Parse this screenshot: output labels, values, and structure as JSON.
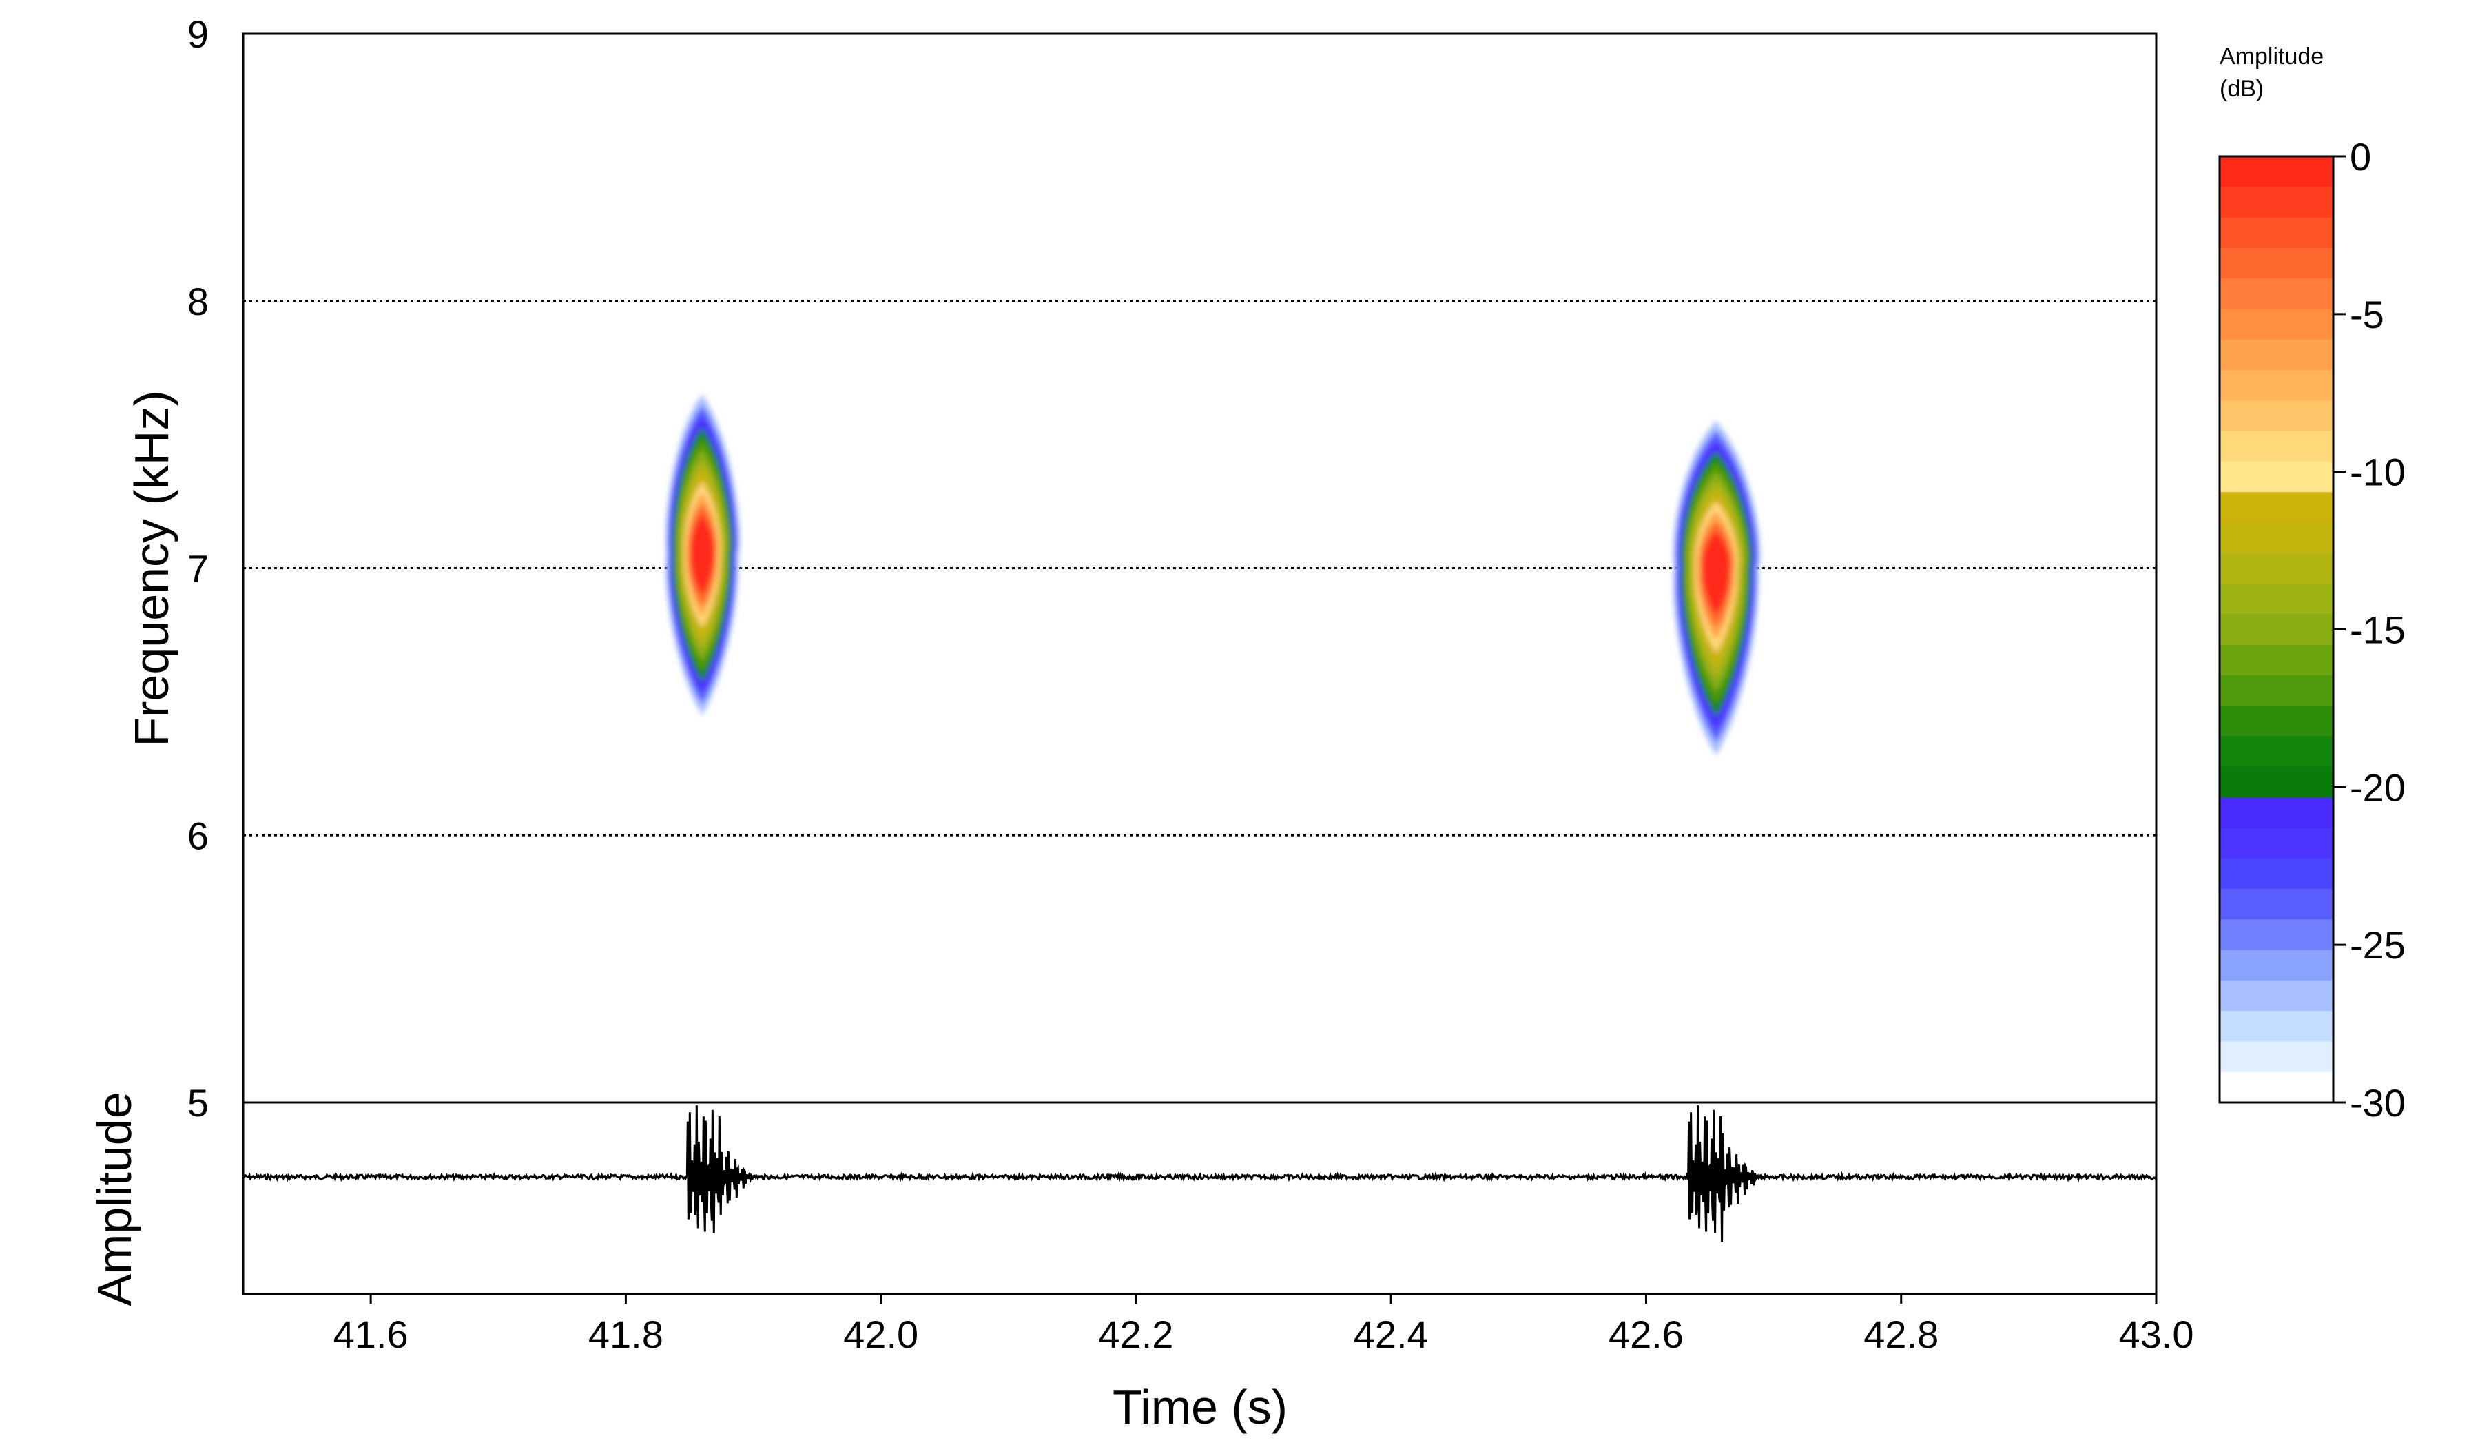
{
  "chart_data": [
    {
      "type": "heatmap",
      "panel": "spectrogram",
      "ylabel": "Frequency (kHz)",
      "xlim": [
        41.5,
        43.0
      ],
      "ylim": [
        5,
        9
      ],
      "yticks": [
        "5",
        "6",
        "7",
        "8",
        "9"
      ],
      "grid": "horizontal dotted lines at 6, 7, 8 kHz",
      "events": [
        {
          "t_start": 41.85,
          "t_end": 41.9,
          "t_peak": 41.86,
          "f_low": 6.45,
          "f_high": 7.65,
          "f_peak": 7.05,
          "peak_db": 0
        },
        {
          "t_start": 42.63,
          "t_end": 42.69,
          "t_peak": 42.655,
          "f_low": 6.3,
          "f_high": 7.55,
          "f_peak": 7.0,
          "peak_db": 0
        }
      ]
    },
    {
      "type": "line",
      "panel": "oscillogram",
      "ylabel": "Amplitude",
      "xlabel": "Time (s)",
      "xlim": [
        41.5,
        43.0
      ],
      "xticks": [
        "41.6",
        "41.8",
        "42.0",
        "42.2",
        "42.4",
        "42.6",
        "42.8",
        "43.0"
      ],
      "bursts": [
        {
          "t_start": 41.848,
          "t_end": 41.895,
          "relative_amplitude": 1.0
        },
        {
          "t_start": 42.633,
          "t_end": 42.685,
          "relative_amplitude": 1.0
        }
      ]
    }
  ],
  "colorbar": {
    "title_line1": "Amplitude",
    "title_line2": "(dB)",
    "range": [
      -30,
      0
    ],
    "ticks": [
      "0",
      "-5",
      "-10",
      "-15",
      "-20",
      "-25",
      "-30"
    ],
    "colors": [
      "#ff2a1a",
      "#ff3f1f",
      "#ff5526",
      "#ff692e",
      "#ff7d38",
      "#ff9042",
      "#ffa34e",
      "#ffb55b",
      "#ffc76a",
      "#ffd87a",
      "#ffe68c",
      "#cdb30a",
      "#c2b60f",
      "#b1b512",
      "#9eb314",
      "#88ad12",
      "#6da510",
      "#4f9a0d",
      "#2c8e0a",
      "#12860a",
      "#0a7c0a",
      "#4a2cff",
      "#4e34ff",
      "#4a45ff",
      "#5b5eff",
      "#7180ff",
      "#8aa2ff",
      "#a8c0ff",
      "#c5ddff",
      "#dfefff",
      "#ffffff"
    ]
  }
}
